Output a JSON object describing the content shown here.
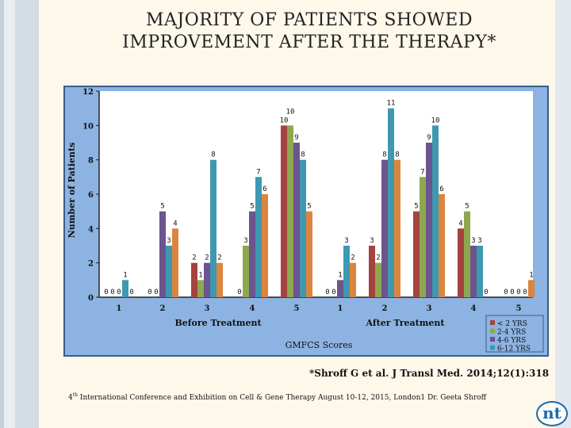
{
  "slide": {
    "title_line1": "MAJORITY OF PATIENTS SHOWED",
    "title_line2": "IMPROVEMENT AFTER THE THERAPY*",
    "citation": "*Shroff G et al. J Transl Med. 2014;12(1):318",
    "footer_sup": "th",
    "footer_num": "4",
    "footer": "International Conference and Exhibition on Cell & Gene Therapy August 10-12, 2015, London1 Dr. Geeta Shroff",
    "logo": "nt"
  },
  "chart_data": {
    "type": "bar",
    "ylabel": "Number of Patients",
    "xlabel": "GMFCS Scores",
    "group_labels": [
      "Before Treatment",
      "After Treatment"
    ],
    "categories": [
      "1",
      "2",
      "3",
      "4",
      "5",
      "1",
      "2",
      "3",
      "4",
      "5"
    ],
    "ylim": [
      0,
      12
    ],
    "yticks": [
      0,
      2,
      4,
      6,
      8,
      10,
      12
    ],
    "grid": false,
    "legend_position": "bottom-right",
    "series": [
      {
        "name": "< 2 YRS",
        "color": "#a5433f",
        "values": [
          0,
          0,
          2,
          0,
          10,
          0,
          3,
          5,
          4,
          0
        ]
      },
      {
        "name": "2-4 YRS",
        "color": "#8ea84f",
        "values": [
          0,
          0,
          1,
          3,
          10,
          0,
          2,
          7,
          5,
          0
        ]
      },
      {
        "name": "4-6 YRS",
        "color": "#6c548e",
        "values": [
          0,
          5,
          2,
          5,
          9,
          1,
          8,
          9,
          3,
          0
        ]
      },
      {
        "name": "6-12 YRS",
        "color": "#3e98b0",
        "values": [
          1,
          3,
          8,
          7,
          8,
          3,
          11,
          10,
          3,
          0
        ]
      },
      {
        "color": "#dc853e",
        "values": [
          0,
          4,
          2,
          6,
          5,
          2,
          8,
          6,
          0,
          1
        ]
      }
    ]
  }
}
